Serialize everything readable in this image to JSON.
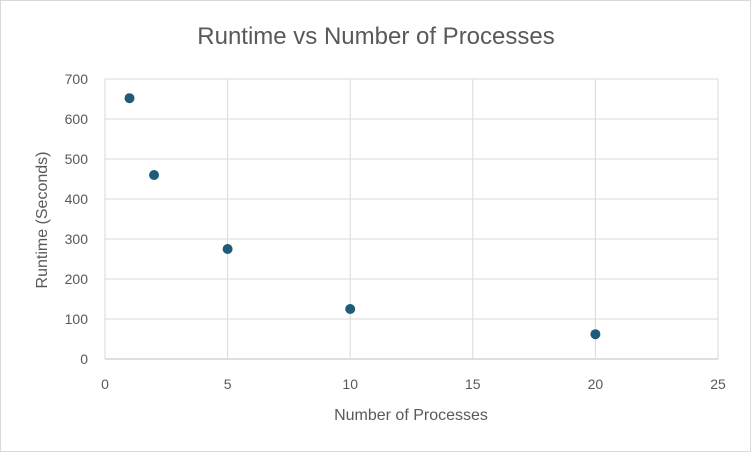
{
  "chart_data": {
    "type": "scatter",
    "title": "Runtime vs Number of Processes",
    "xlabel": "Number of Processes",
    "ylabel": "Runtime (Seconds)",
    "xlim": [
      0,
      25
    ],
    "ylim": [
      0,
      700
    ],
    "xticks": [
      0,
      5,
      10,
      15,
      20,
      25
    ],
    "yticks": [
      0,
      100,
      200,
      300,
      400,
      500,
      600,
      700
    ],
    "grid": true,
    "legend": "none",
    "marker_color": "#1f5c7a",
    "series": [
      {
        "x": [
          1,
          2,
          5,
          10,
          20
        ],
        "y": [
          652,
          460,
          275,
          125,
          62
        ]
      }
    ]
  }
}
